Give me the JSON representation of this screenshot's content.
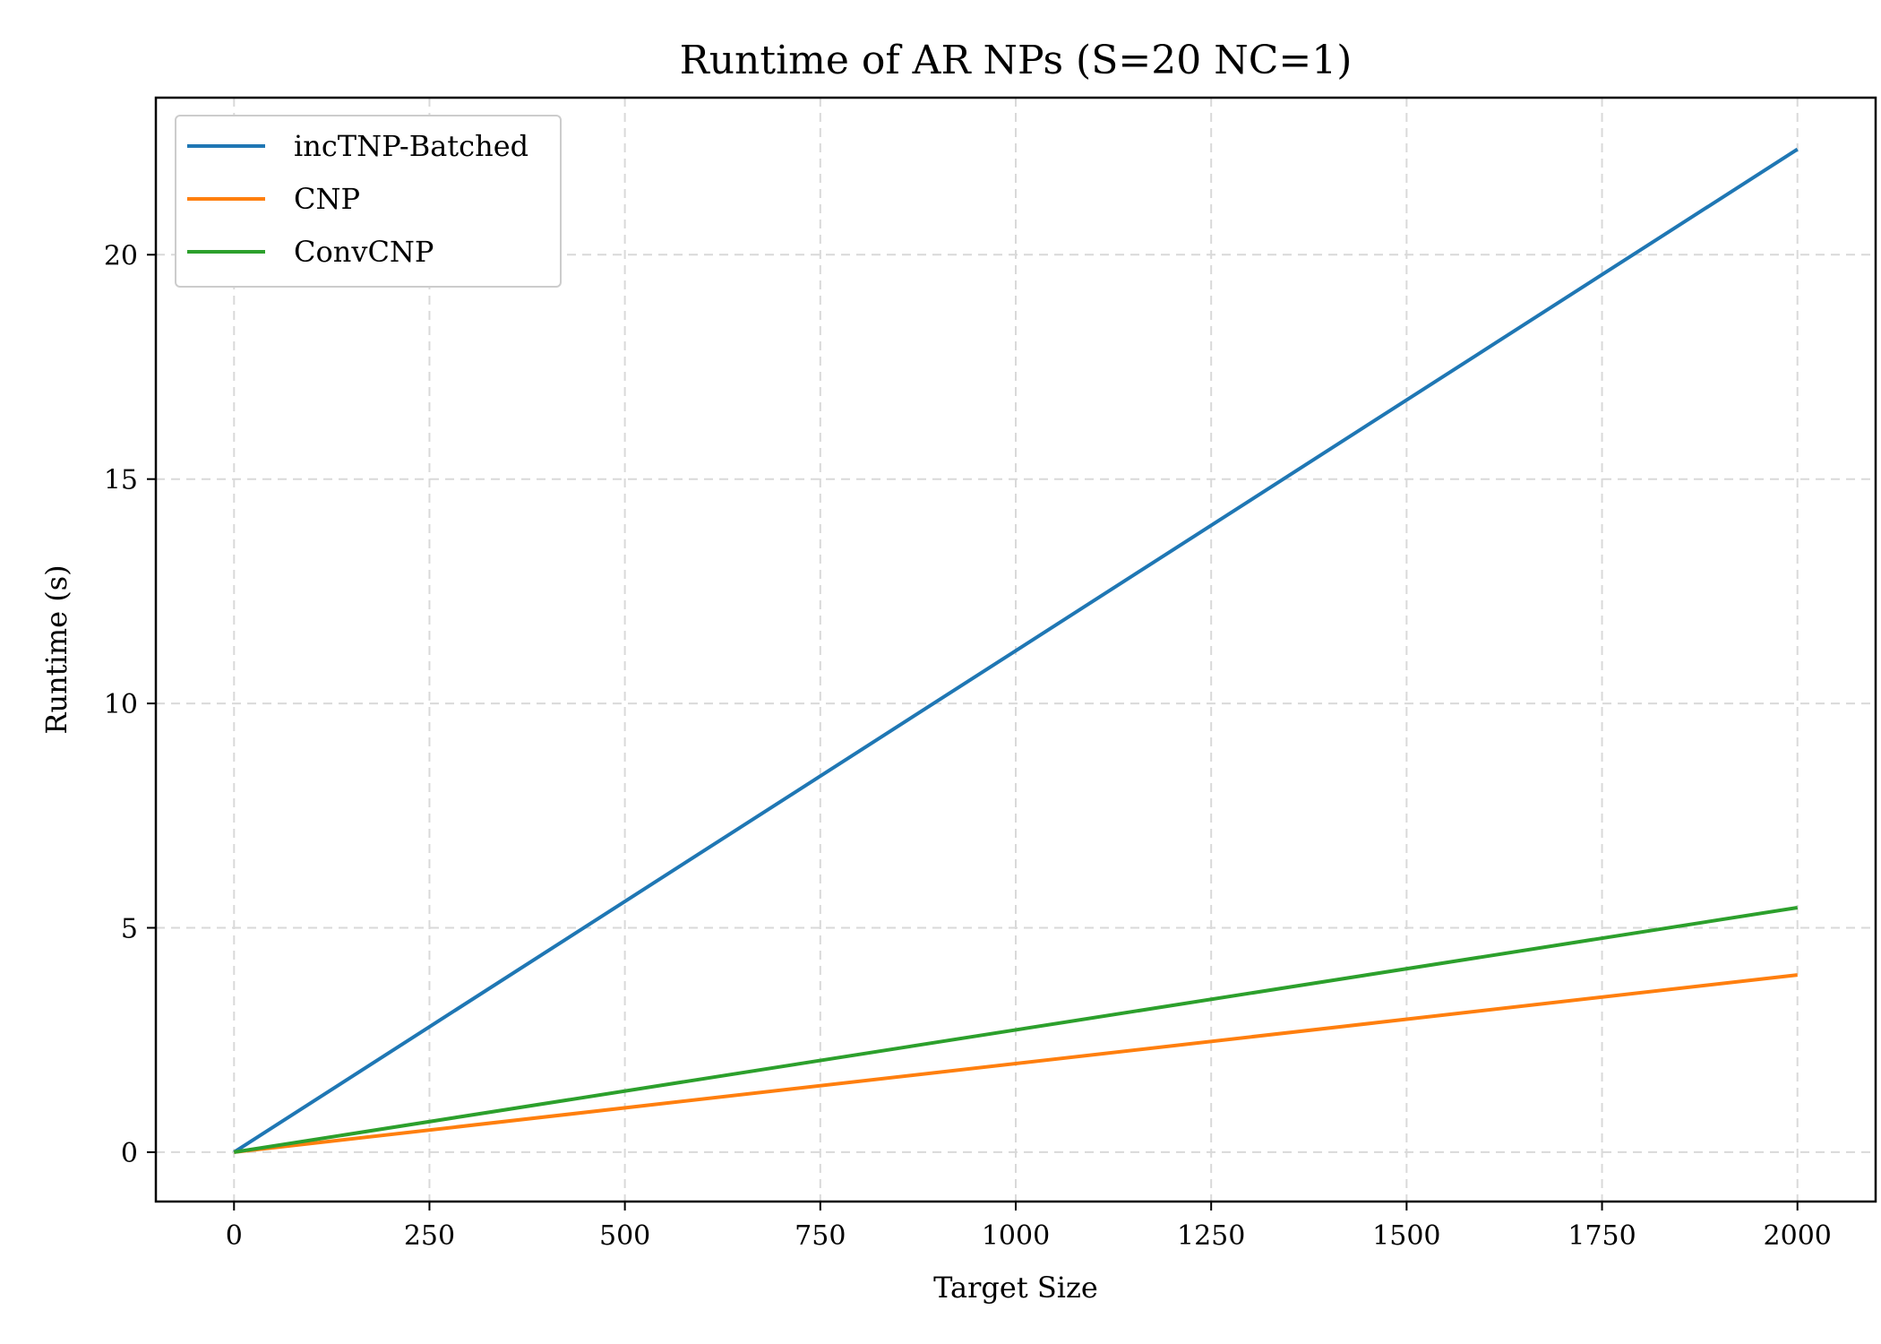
{
  "chart_data": {
    "type": "line",
    "title": "Runtime of AR NPs (S=20 NC=1)",
    "xlabel": "Target Size",
    "ylabel": "Runtime (s)",
    "xlim": [
      -100,
      2100
    ],
    "ylim": [
      -1.1,
      23.5
    ],
    "xticks": [
      0,
      250,
      500,
      750,
      1000,
      1250,
      1500,
      1750,
      2000
    ],
    "yticks": [
      0,
      5,
      10,
      15,
      20
    ],
    "grid": true,
    "legend_position": "top-left",
    "series": [
      {
        "name": "incTNP-Batched",
        "color": "#1f77b4",
        "x": [
          0,
          2000
        ],
        "y": [
          0.0,
          22.35
        ]
      },
      {
        "name": "CNP",
        "color": "#ff7f0e",
        "x": [
          0,
          2000
        ],
        "y": [
          0.0,
          3.95
        ]
      },
      {
        "name": "ConvCNP",
        "color": "#2ca02c",
        "x": [
          0,
          2000
        ],
        "y": [
          0.0,
          5.45
        ]
      }
    ]
  }
}
